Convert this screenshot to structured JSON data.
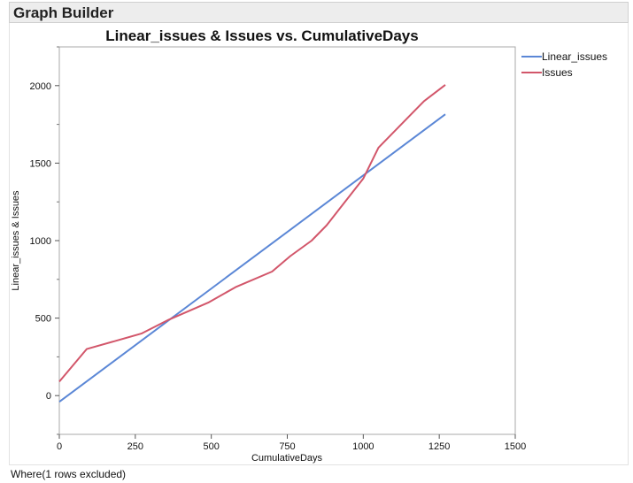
{
  "window": {
    "title": "Graph Builder"
  },
  "footer": {
    "text": "Where(1 rows excluded)"
  },
  "chart_data": {
    "type": "line",
    "title": "Linear_issues & Issues vs. CumulativeDays",
    "xlabel": "CumulativeDays",
    "ylabel": "Linear_issues & Issues",
    "xlim": [
      0,
      1500
    ],
    "ylim": [
      -250,
      2250
    ],
    "xticks": [
      0,
      250,
      500,
      750,
      1000,
      1250,
      1500
    ],
    "yticks": [
      0,
      500,
      1000,
      1500,
      2000
    ],
    "grid": false,
    "legend": "right",
    "series": [
      {
        "name": "Linear_issues",
        "color": "#5b87d6",
        "x": [
          0,
          1270
        ],
        "y": [
          -40,
          1815
        ]
      },
      {
        "name": "Issues",
        "color": "#d2566a",
        "x": [
          0,
          90,
          270,
          360,
          490,
          580,
          700,
          760,
          830,
          880,
          1000,
          1050,
          1150,
          1200,
          1270
        ],
        "y": [
          90,
          300,
          400,
          490,
          600,
          700,
          800,
          900,
          1000,
          1100,
          1400,
          1600,
          1800,
          1900,
          2005
        ]
      }
    ]
  }
}
